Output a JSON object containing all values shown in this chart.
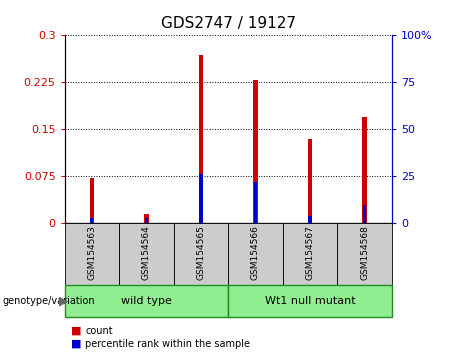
{
  "title": "GDS2747 / 19127",
  "samples": [
    "GSM154563",
    "GSM154564",
    "GSM154565",
    "GSM154566",
    "GSM154567",
    "GSM154568"
  ],
  "red_values": [
    0.072,
    0.014,
    0.268,
    0.228,
    0.135,
    0.17
  ],
  "blue_values_pct": [
    2.5,
    2.5,
    26.0,
    22.0,
    3.5,
    9.5
  ],
  "ylim_left": [
    0,
    0.3
  ],
  "ylim_right": [
    0,
    100
  ],
  "yticks_left": [
    0,
    0.075,
    0.15,
    0.225,
    0.3
  ],
  "ytick_labels_left": [
    "0",
    "0.075",
    "0.15",
    "0.225",
    "0.3"
  ],
  "yticks_right": [
    0,
    25,
    50,
    75,
    100
  ],
  "ytick_labels_right": [
    "0",
    "25",
    "50",
    "75",
    "100%"
  ],
  "groups": [
    {
      "label": "wild type",
      "indices": [
        0,
        1,
        2
      ],
      "color": "#90EE90"
    },
    {
      "label": "Wt1 null mutant",
      "indices": [
        3,
        4,
        5
      ],
      "color": "#90EE90"
    }
  ],
  "legend_items": [
    {
      "label": "count",
      "color": "#CC0000"
    },
    {
      "label": "percentile rank within the sample",
      "color": "#0000CC"
    }
  ],
  "red_bar_width": 0.08,
  "blue_bar_width": 0.06,
  "red_color": "#CC0000",
  "blue_color": "#0000CC",
  "tick_label_area_color": "#cccccc",
  "title_fontsize": 11,
  "tick_fontsize": 8
}
